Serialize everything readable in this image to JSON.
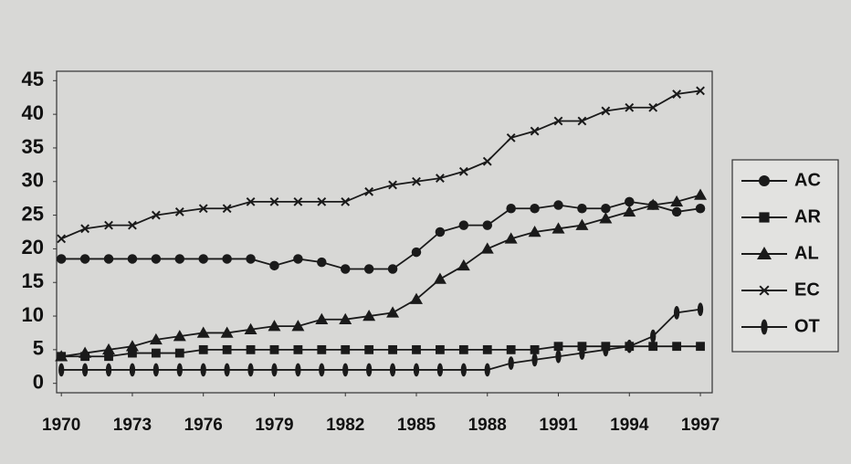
{
  "chart_data": {
    "type": "line",
    "x": [
      1970,
      1971,
      1972,
      1973,
      1974,
      1975,
      1976,
      1977,
      1978,
      1979,
      1980,
      1981,
      1982,
      1983,
      1984,
      1985,
      1986,
      1987,
      1988,
      1989,
      1990,
      1991,
      1992,
      1993,
      1994,
      1995,
      1996,
      1997
    ],
    "xlim": [
      1969.8,
      1997.5
    ],
    "xticks": [
      1970,
      1973,
      1976,
      1979,
      1982,
      1985,
      1988,
      1991,
      1994,
      1997
    ],
    "ylim": [
      -1.4,
      46.4
    ],
    "yticks": [
      0,
      5,
      10,
      15,
      20,
      25,
      30,
      35,
      40,
      45
    ],
    "grid": false,
    "legend": "right",
    "series": [
      {
        "name": "AC",
        "color": "#1a1a1a",
        "marker": "circle",
        "values": [
          18.5,
          18.5,
          18.5,
          18.5,
          18.5,
          18.5,
          18.5,
          18.5,
          18.5,
          17.5,
          18.5,
          18,
          17,
          17,
          17,
          19.5,
          22.5,
          23.5,
          23.5,
          26,
          26,
          26.5,
          26,
          26,
          27,
          26.5,
          25.5,
          26
        ]
      },
      {
        "name": "AR",
        "color": "#1a1a1a",
        "marker": "square",
        "values": [
          4,
          4,
          4,
          4.5,
          4.5,
          4.5,
          5,
          5,
          5,
          5,
          5,
          5,
          5,
          5,
          5,
          5,
          5,
          5,
          5,
          5,
          5,
          5.5,
          5.5,
          5.5,
          5.5,
          5.5,
          5.5,
          5.5
        ]
      },
      {
        "name": "AL",
        "color": "#1a1a1a",
        "marker": "triangle",
        "values": [
          4,
          4.5,
          5,
          5.5,
          6.5,
          7,
          7.5,
          7.5,
          8,
          8.5,
          8.5,
          9.5,
          9.5,
          10,
          10.5,
          12.5,
          15.5,
          17.5,
          20,
          21.5,
          22.5,
          23,
          23.5,
          24.5,
          25.5,
          26.5,
          27,
          28
        ]
      },
      {
        "name": "EC",
        "color": "#1a1a1a",
        "marker": "cross",
        "values": [
          21.5,
          23,
          23.5,
          23.5,
          25,
          25.5,
          26,
          26,
          27,
          27,
          27,
          27,
          27,
          28.5,
          29.5,
          30,
          30.5,
          31.5,
          33,
          36.5,
          37.5,
          39,
          39,
          40.5,
          41,
          41,
          43,
          43.5
        ]
      },
      {
        "name": "OT",
        "color": "#1a1a1a",
        "marker": "ellipse",
        "values": [
          2,
          2,
          2,
          2,
          2,
          2,
          2,
          2,
          2,
          2,
          2,
          2,
          2,
          2,
          2,
          2,
          2,
          2,
          2,
          3,
          3.5,
          4,
          4.5,
          5,
          5.5,
          7,
          10.5,
          11
        ]
      }
    ]
  }
}
